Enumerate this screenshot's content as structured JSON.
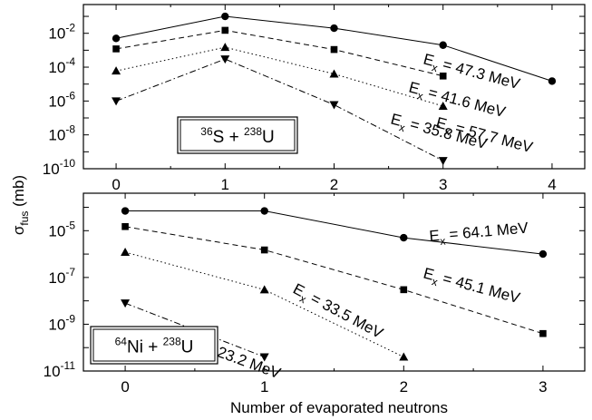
{
  "chart_data": [
    {
      "type": "line",
      "yscale": "log",
      "xlim": [
        -0.3,
        4.3
      ],
      "ylim": [
        1e-10,
        0.5
      ],
      "xticks": [
        0,
        1,
        2,
        3,
        4
      ],
      "xtick_labels": [
        "0",
        "1",
        "2",
        "3",
        "4"
      ],
      "yticks": [
        1e-10,
        1e-08,
        1e-06,
        0.0001,
        0.01
      ],
      "ytick_labels": [
        {
          "base": "10",
          "exp": "-10"
        },
        {
          "base": "10",
          "exp": "-8"
        },
        {
          "base": "10",
          "exp": "-6"
        },
        {
          "base": "10",
          "exp": "-4"
        },
        {
          "base": "10",
          "exp": "-2"
        }
      ],
      "reaction": {
        "a1": "36",
        "s1": "S",
        "a2": "238",
        "s2": "U"
      },
      "series": [
        {
          "style": "solid",
          "marker": "circle",
          "x": [
            0,
            1,
            2,
            3,
            4
          ],
          "y": [
            0.005,
            0.1,
            0.02,
            0.002,
            1.5e-05
          ],
          "label": {
            "sym": "E",
            "sub": "x",
            "text": " = 57.7 MeV"
          }
        },
        {
          "style": "dashed",
          "marker": "square",
          "x": [
            0,
            1,
            2,
            3
          ],
          "y": [
            0.0012,
            0.015,
            0.0011,
            3e-05
          ],
          "label": {
            "sym": "E",
            "sub": "x",
            "text": " = 47.3 MeV"
          }
        },
        {
          "style": "dotted",
          "marker": "triangle-up",
          "x": [
            0,
            1,
            2,
            3
          ],
          "y": [
            6e-05,
            0.0015,
            4e-05,
            5e-07
          ],
          "label": {
            "sym": "E",
            "sub": "x",
            "text": " = 41.6 MeV"
          }
        },
        {
          "style": "dashdot",
          "marker": "triangle-down",
          "x": [
            0,
            1,
            2,
            3
          ],
          "y": [
            1e-06,
            0.0003,
            6e-07,
            3e-10
          ],
          "label": {
            "sym": "E",
            "sub": "x",
            "text": " = 35.8 MeV"
          }
        }
      ]
    },
    {
      "type": "line",
      "yscale": "log",
      "xlim": [
        -0.3,
        3.3
      ],
      "ylim": [
        1e-11,
        0.0004
      ],
      "xticks": [
        0,
        1,
        2,
        3
      ],
      "xtick_labels": [
        "0",
        "1",
        "2",
        "3"
      ],
      "yticks": [
        1e-11,
        1e-09,
        1e-07,
        1e-05
      ],
      "ytick_labels": [
        {
          "base": "10",
          "exp": "-11"
        },
        {
          "base": "10",
          "exp": "-9"
        },
        {
          "base": "10",
          "exp": "-7"
        },
        {
          "base": "10",
          "exp": "-5"
        }
      ],
      "reaction": {
        "a1": "64",
        "s1": "Ni",
        "a2": "238",
        "s2": "U"
      },
      "series": [
        {
          "style": "solid",
          "marker": "circle",
          "x": [
            0,
            1,
            2,
            3
          ],
          "y": [
            7e-05,
            7e-05,
            5e-06,
            1e-06
          ],
          "label": {
            "sym": "E",
            "sub": "x",
            "text": " = 64.1 MeV"
          }
        },
        {
          "style": "dashed",
          "marker": "square",
          "x": [
            0,
            1,
            2,
            3
          ],
          "y": [
            1.5e-05,
            1.5e-06,
            3e-08,
            4e-10
          ],
          "label": {
            "sym": "E",
            "sub": "x",
            "text": " = 45.1 MeV"
          }
        },
        {
          "style": "dotted",
          "marker": "triangle-up",
          "x": [
            0,
            1,
            2
          ],
          "y": [
            1.2e-06,
            3e-08,
            4e-11
          ],
          "label": {
            "sym": "E",
            "sub": "x",
            "text": " = 33.5 MeV"
          }
        },
        {
          "style": "dashdot",
          "marker": "triangle-down",
          "x": [
            0,
            1
          ],
          "y": [
            8e-09,
            4e-11
          ],
          "label": {
            "sym": "E",
            "sub": "x",
            "text": " = 23.2 MeV"
          }
        }
      ]
    }
  ],
  "ylabel": {
    "sym": "σ",
    "sub": "fus",
    "unit": " (mb)"
  },
  "xlabel": "Number of evaporated neutrons"
}
